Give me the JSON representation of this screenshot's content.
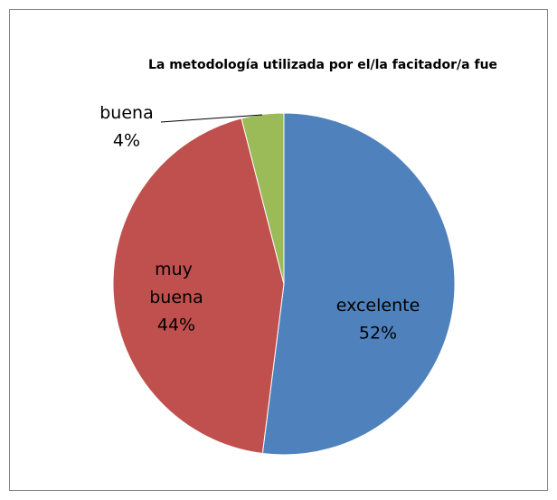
{
  "chart_data": {
    "type": "pie",
    "title": "La metodología utilizada por el/la facitador/a fue",
    "categories": [
      "excelente",
      "muy buena",
      "buena"
    ],
    "values": [
      52,
      44,
      4
    ],
    "value_labels": [
      "52%",
      "44%",
      "4%"
    ],
    "colors": [
      "#4f81bd",
      "#c0504d",
      "#9bbb59"
    ]
  }
}
